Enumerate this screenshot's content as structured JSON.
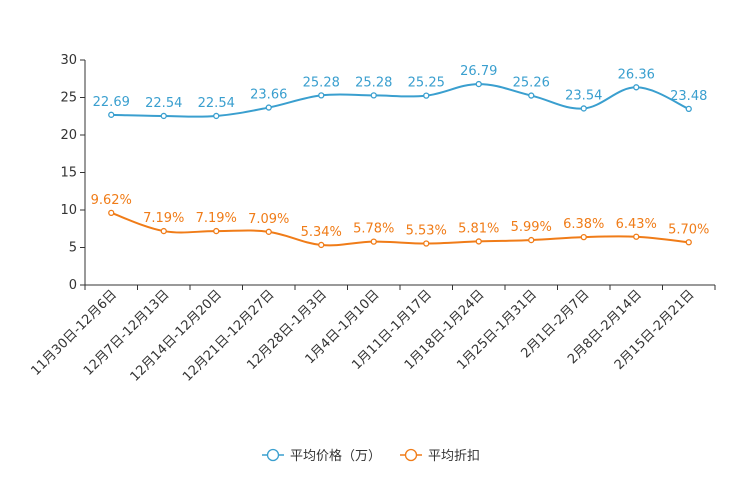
{
  "chart_data": {
    "type": "line",
    "title": "",
    "xlabel": "",
    "ylabel": "",
    "ylim": [
      0,
      30
    ],
    "yticks": [
      0,
      5,
      10,
      15,
      20,
      25,
      30
    ],
    "grid": false,
    "legend_position": "bottom-center",
    "categories": [
      "11月30日-12月6日",
      "12月7日-12月13日",
      "12月14日-12月20日",
      "12月21日-12月27日",
      "12月28日-1月3日",
      "1月4日-1月10日",
      "1月11日-1月17日",
      "1月18日-1月24日",
      "1月25日-1月31日",
      "2月1日-2月7日",
      "2月8日-2月14日",
      "2月15日-2月21日"
    ],
    "series": [
      {
        "name": "平均价格（万）",
        "color": "#3a9fcf",
        "values": [
          22.69,
          22.54,
          22.54,
          23.66,
          25.28,
          25.28,
          25.25,
          26.79,
          25.26,
          23.54,
          26.36,
          23.48
        ],
        "labels": [
          "22.69",
          "22.54",
          "22.54",
          "23.66",
          "25.28",
          "25.28",
          "25.25",
          "26.79",
          "25.26",
          "23.54",
          "26.36",
          "23.48"
        ]
      },
      {
        "name": "平均折扣",
        "color": "#f07c18",
        "values": [
          9.62,
          7.19,
          7.19,
          7.09,
          5.34,
          5.78,
          5.53,
          5.81,
          5.99,
          6.38,
          6.43,
          5.7
        ],
        "labels": [
          "9.62%",
          "7.19%",
          "7.19%",
          "7.09%",
          "5.34%",
          "5.78%",
          "5.53%",
          "5.81%",
          "5.99%",
          "6.38%",
          "6.43%",
          "5.70%"
        ]
      }
    ]
  }
}
